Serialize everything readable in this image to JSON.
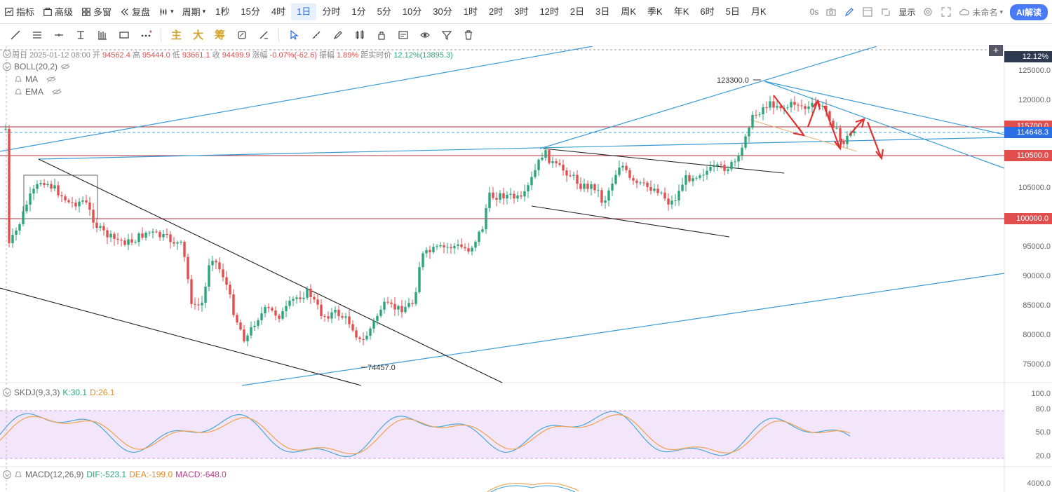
{
  "topbar": {
    "indicator": "指标",
    "advanced": "高级",
    "multiwin": "多窗",
    "replay": "复盘",
    "period_menu": "周期",
    "periods": [
      "1秒",
      "15分",
      "4时",
      "1日",
      "分时",
      "1分",
      "5分",
      "10分",
      "30分",
      "1时",
      "2时",
      "3时",
      "12时",
      "2日",
      "3日",
      "周K",
      "季K",
      "年K",
      "6时",
      "5日",
      "月K"
    ],
    "active_period": "1日",
    "right": {
      "latency": "0s",
      "display": "显示",
      "name": "未命名",
      "ai": "AI解读"
    }
  },
  "toolbar2": {
    "text_tools": [
      "主",
      "大",
      "筹"
    ]
  },
  "legend": {
    "period": "周日",
    "date": "2025-01-12 08:00",
    "open_l": "开",
    "open": "94562.4",
    "high_l": "高",
    "high": "95444.0",
    "low_l": "低",
    "low": "93661.1",
    "close_l": "收",
    "close": "94499.9",
    "chg_l": "涨幅",
    "chg": "-0.07%(-62.6)",
    "amp_l": "振幅",
    "amp": "1.89%",
    "dist_l": "距实时价",
    "dist": "12.12%(13895.3)"
  },
  "indicators": {
    "boll": "BOLL(20,2)",
    "ma": "MA",
    "ema": "EMA",
    "skdj": "SKDJ(9,3,3)",
    "k": "K:30.1",
    "d": "D:26.1",
    "macd": "MACD(12,26,9)",
    "dif": "DIF:-523.1",
    "dea": "DEA:-199.0",
    "macd_v": "MACD:-648.0"
  },
  "price_axis": {
    "labels": [
      "125000.0",
      "120000.0",
      "105000.0",
      "95000.0",
      "90000.0",
      "85000.0",
      "80000.0",
      "75000.0"
    ],
    "pct_tag": "12.12%",
    "tags": [
      {
        "label": "115700.0",
        "color": "#e04e4e"
      },
      {
        "label": "114648.3",
        "color": "#2b6de5"
      },
      {
        "label": "110500.0",
        "color": "#e04e4e"
      },
      {
        "label": "100000.0",
        "color": "#e04e4e"
      }
    ]
  },
  "skdj_axis": [
    "100.0",
    "80.0",
    "50.0",
    "20.0"
  ],
  "macd_axis": [
    "4000.0"
  ],
  "annotations": {
    "high": "123300.0",
    "low": "74457.0"
  },
  "colors": {
    "up": "#2aa57c",
    "down": "#e04e4e",
    "accent": "#2b6de5",
    "trend": "#3a9bd5",
    "hline": "#b0313f",
    "kline": "#4aa8d8",
    "dline": "#f0a24e"
  }
}
